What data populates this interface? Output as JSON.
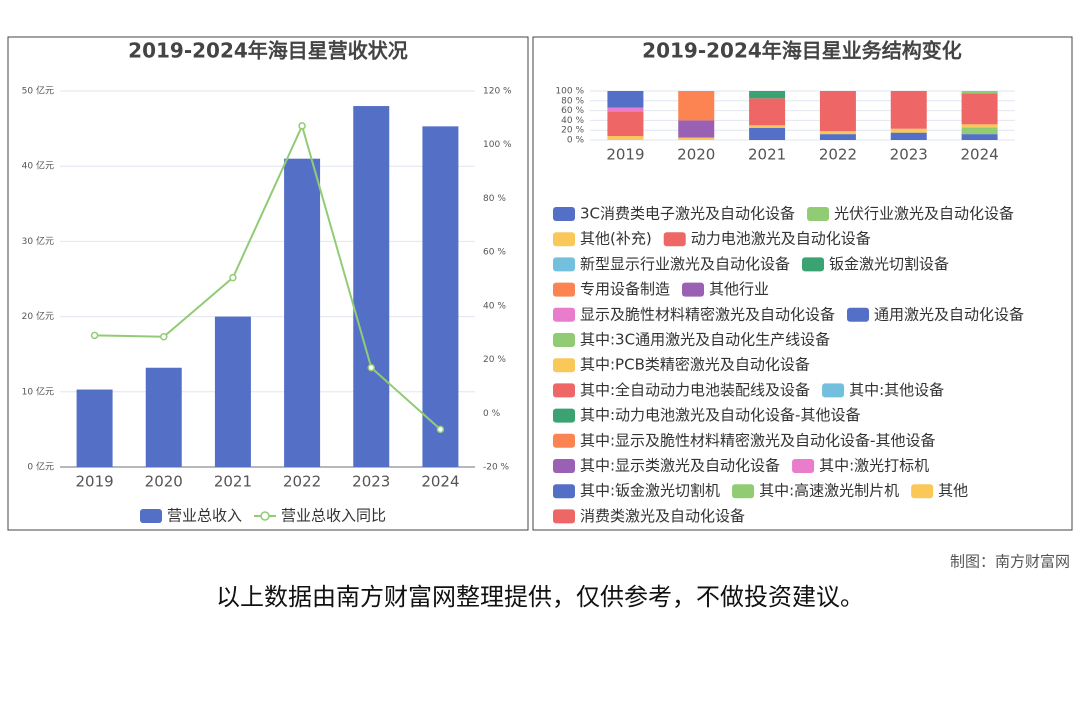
{
  "chart_data": [
    {
      "type": "bar_line",
      "title": "2019-2024年海目星营收状况",
      "categories": [
        "2019",
        "2020",
        "2021",
        "2022",
        "2023",
        "2024"
      ],
      "series": [
        {
          "name": "营业总收入",
          "type": "bar",
          "color": "#5470c6",
          "values": [
            10.3,
            13.2,
            20.0,
            41.0,
            48.0,
            45.3
          ]
        },
        {
          "name": "营业总收入同比",
          "type": "line",
          "axis": "y2",
          "color": "#91cc75",
          "values": [
            29,
            28.5,
            50.5,
            107,
            17,
            -6
          ]
        }
      ],
      "ylim": [
        0,
        50
      ],
      "yticks": [
        {
          "value": 0,
          "label": "0 亿元"
        },
        {
          "value": 10,
          "label": "10 亿元"
        },
        {
          "value": 20,
          "label": "20 亿元"
        },
        {
          "value": 30,
          "label": "30 亿元"
        },
        {
          "value": 40,
          "label": "40 亿元"
        },
        {
          "value": 50,
          "label": "50 亿元"
        }
      ],
      "y2lim": [
        -20,
        120
      ],
      "y2ticks": [
        {
          "value": -20,
          "label": "-20 %"
        },
        {
          "value": 0,
          "label": "0 %"
        },
        {
          "value": 20,
          "label": "20 %"
        },
        {
          "value": 40,
          "label": "40 %"
        },
        {
          "value": 60,
          "label": "60 %"
        },
        {
          "value": 80,
          "label": "80 %"
        },
        {
          "value": 100,
          "label": "100 %"
        },
        {
          "value": 120,
          "label": "120 %"
        }
      ],
      "grid": true,
      "legend": "bottom"
    },
    {
      "type": "stacked_bar",
      "title": "2019-2024年海目星业务结构变化",
      "categories": [
        "2019",
        "2020",
        "2021",
        "2022",
        "2023",
        "2024"
      ],
      "series": [
        {
          "name": "3C消费类电子激光及自动化设备",
          "color": "#5470c6",
          "values": [
            0,
            0,
            25,
            12,
            15,
            12
          ]
        },
        {
          "name": "光伏行业激光及自动化设备",
          "color": "#91cc75",
          "values": [
            0,
            0,
            0,
            0,
            0,
            14
          ]
        },
        {
          "name": "其他(补充)",
          "color": "#fac858",
          "values": [
            8,
            5,
            5,
            6,
            8,
            6
          ]
        },
        {
          "name": "动力电池激光及自动化设备",
          "color": "#ee6666",
          "values": [
            50,
            0,
            55,
            82,
            77,
            63
          ]
        },
        {
          "name": "新型显示行业激光及自动化设备",
          "color": "#73c0de",
          "values": [
            0,
            0,
            0,
            0,
            0,
            0
          ]
        },
        {
          "name": "钣金激光切割设备",
          "color": "#3ba272",
          "values": [
            0,
            0,
            15,
            0,
            0,
            0
          ]
        },
        {
          "name": "专用设备制造",
          "color": "#fc8452",
          "values": [
            0,
            0,
            0,
            0,
            0,
            0
          ]
        },
        {
          "name": "其他行业",
          "color": "#9a60b4",
          "values": [
            0,
            35,
            0,
            0,
            0,
            0
          ]
        },
        {
          "name": "显示及脆性材料精密激光及自动化设备",
          "color": "#ea7ccc",
          "values": [
            8,
            0,
            0,
            0,
            0,
            0
          ]
        },
        {
          "name": "通用激光及自动化设备",
          "color": "#5470c6",
          "values": [
            34,
            0,
            0,
            0,
            0,
            0
          ]
        },
        {
          "name": "其中:3C通用激光及自动化生产线设备",
          "color": "#91cc75",
          "values": [
            0,
            0,
            0,
            0,
            0,
            0
          ]
        },
        {
          "name": "其中:PCB类精密激光及自动化设备",
          "color": "#fac858",
          "values": [
            0,
            0,
            0,
            0,
            0,
            0
          ]
        },
        {
          "name": "其中:全自动动力电池装配线及设备",
          "color": "#ee6666",
          "values": [
            0,
            0,
            0,
            0,
            0,
            0
          ]
        },
        {
          "name": "其中:其他设备",
          "color": "#73c0de",
          "values": [
            0,
            0,
            0,
            0,
            0,
            0
          ]
        },
        {
          "name": "其中:动力电池激光及自动化设备-其他设备",
          "color": "#3ba272",
          "values": [
            0,
            0,
            0,
            0,
            0,
            0
          ]
        },
        {
          "name": "其中:显示及脆性材料精密激光及自动化设备-其他设备",
          "color": "#fc8452",
          "values": [
            0,
            60,
            0,
            0,
            0,
            0
          ]
        },
        {
          "name": "其中:显示类激光及自动化设备",
          "color": "#9a60b4",
          "values": [
            0,
            0,
            0,
            0,
            0,
            0
          ]
        },
        {
          "name": "其中:激光打标机",
          "color": "#ea7ccc",
          "values": [
            0,
            0,
            0,
            0,
            0,
            0
          ]
        },
        {
          "name": "其中:钣金激光切割机",
          "color": "#5470c6",
          "values": [
            0,
            0,
            0,
            0,
            0,
            0
          ]
        },
        {
          "name": "其中:高速激光制片机",
          "color": "#91cc75",
          "values": [
            0,
            0,
            0,
            0,
            0,
            5
          ]
        },
        {
          "name": "其他",
          "color": "#fac858",
          "values": [
            0,
            0,
            0,
            0,
            0,
            0
          ]
        },
        {
          "name": "消费类激光及自动化设备",
          "color": "#ee6666",
          "values": [
            0,
            0,
            0,
            0,
            0,
            0
          ]
        }
      ],
      "ylim": [
        0,
        100
      ],
      "yticks": [
        {
          "value": 0,
          "label": "0 %"
        },
        {
          "value": 20,
          "label": "20 %"
        },
        {
          "value": 40,
          "label": "40 %"
        },
        {
          "value": 60,
          "label": "60 %"
        },
        {
          "value": 80,
          "label": "80 %"
        },
        {
          "value": 100,
          "label": "100 %"
        }
      ],
      "grid": true,
      "legend": "bottom"
    }
  ],
  "source_note": "制图：南方财富网",
  "disclaimer": "以上数据由南方财富网整理提供，仅供参考，不做投资建议。"
}
